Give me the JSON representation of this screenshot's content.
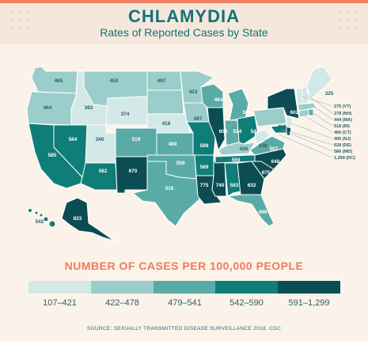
{
  "header": {
    "title": "CHLAMYDIA",
    "subtitle": "Rates of Reported Cases by State"
  },
  "colors": {
    "level1": "#d3e9e7",
    "level2": "#9bcdca",
    "level3": "#5aaba6",
    "level4": "#0f7d78",
    "level5": "#0c4d53",
    "accent": "#f07a5a",
    "background": "#fbf3ea"
  },
  "states": {
    "WA": "465",
    "OR": "464",
    "CA": "585",
    "NV": "584",
    "ID": "383",
    "MT": "459",
    "WY": "374",
    "UT": "340",
    "AZ": "582",
    "CO": "519",
    "NM": "670",
    "ND": "497",
    "SD": "418",
    "NE": "418",
    "KS": "489",
    "OK": "559",
    "TX": "516",
    "MN": "423",
    "IA": "497",
    "MO": "588",
    "AR": "589",
    "LA": "775",
    "WI": "484",
    "IL": "604",
    "MS": "740",
    "MI": "506",
    "IN": "524",
    "OH": "542",
    "KY": "436",
    "TN": "569",
    "AL": "583",
    "GA": "632",
    "FL": "499",
    "SC": "675",
    "NC": "648",
    "VA": "507",
    "WV": "198",
    "PA": "463",
    "NY": "602",
    "ME": "325",
    "AK": "833",
    "HI": "542"
  },
  "northeast_labels": [
    "275 (VT)",
    "278 (NH)",
    "444 (MA)",
    "518 (RI)",
    "466 (CT)",
    "405 (NJ)",
    "628 (DE)",
    "586 (MD)",
    "1,299 (DC)"
  ],
  "legend": {
    "title": "NUMBER OF CASES PER 100,000 PEOPLE",
    "ranges": [
      "107–421",
      "422–478",
      "479–541",
      "542–590",
      "591–1,299"
    ]
  },
  "source": "SOURCE: SEXUALLY TRANSMITTED DISEASE SURVEILLANCE 2018, CDC"
}
